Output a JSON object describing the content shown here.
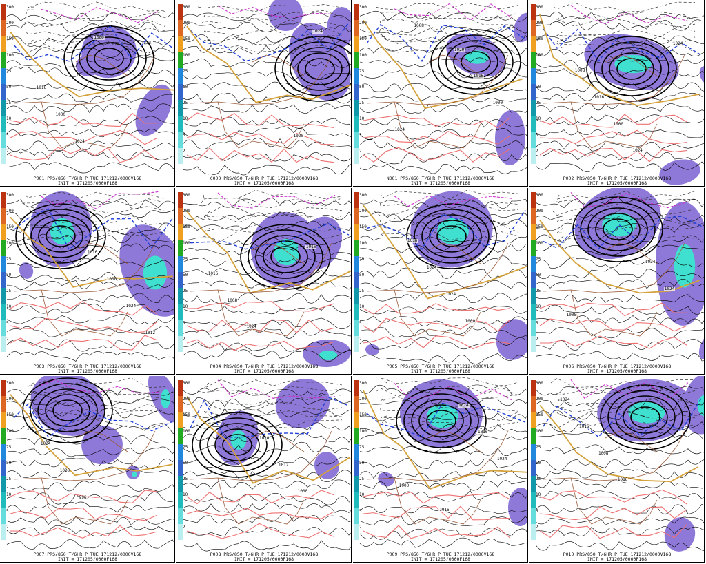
{
  "colors": {
    "precip_light": "#8e79d8",
    "precip_medium": "#a184e0",
    "precip_heavy": "#3fe0d0",
    "precip_core": "#22b6c0",
    "isobar": "#000000",
    "thickness": "#222222",
    "freezing_line": "#1f3fd6",
    "temp_line": "#d4a13a",
    "warm_line": "#ee7070",
    "cold_line": "#cc33cc",
    "coast": "#9a5a3a"
  },
  "colorbar": {
    "labels": [
      "300",
      "200",
      "150",
      "100",
      "75",
      "50",
      "25",
      "10",
      "5",
      "2"
    ],
    "segments": [
      "#bb3311",
      "#dd6622",
      "#f0a020",
      "#22aa22",
      "#2288dd",
      "#3366cc",
      "#1199aa",
      "#22bbbb",
      "#66dddd",
      "#bbeeee"
    ]
  },
  "panels": [
    {
      "id": "p001",
      "caption_line1": "P001 PRS/850 T/6HR P TUE 171212/0000V168",
      "caption_line2": "INIT = 171205/0000F168",
      "labels": [
        "1000",
        "1024",
        "1000",
        "1016"
      ]
    },
    {
      "id": "c000",
      "caption_line1": "C000 PRS/850 T/6HR P TUE 171212/0000V168",
      "caption_line2": "INIT = 171205/0000F168",
      "labels": [
        "1024",
        "1020"
      ]
    },
    {
      "id": "n001",
      "caption_line1": "N001 PRS/850 T/6HR P TUE 171212/0000V168",
      "caption_line2": "INIT = 171205/0000F168",
      "labels": [
        "1008",
        "1024",
        "1000",
        "1016",
        "1020"
      ]
    },
    {
      "id": "p002",
      "caption_line1": "P002 PRS/850 T/6HR P TUE 171212/0000V168",
      "caption_line2": "INIT = 171205/0000F168",
      "labels": [
        "1024",
        "1000",
        "1016",
        "1008",
        "1024"
      ]
    },
    {
      "id": "p003",
      "caption_line1": "P003 PRS/850 T/6HR P TUE 171212/0000V168",
      "caption_line2": "INIT = 171205/0000F168",
      "labels": [
        "1012",
        "1024",
        "1000",
        "1016"
      ]
    },
    {
      "id": "p004",
      "caption_line1": "P004 PRS/850 T/6HR P TUE 171212/0000V168",
      "caption_line2": "INIT = 171205/0000F168",
      "labels": [
        "1024",
        "1008",
        "1016",
        "1016"
      ]
    },
    {
      "id": "p005",
      "caption_line1": "P005 PRS/850 T/6HR P TUE 171212/0000V168",
      "caption_line2": "INIT = 171205/0000F168",
      "labels": [
        "1000",
        "1024",
        "1024",
        "1016"
      ]
    },
    {
      "id": "p006",
      "caption_line1": "P006 PRS/850 T/6HR P TUE 171212/0000V168",
      "caption_line2": "INIT = 171205/0000F168",
      "labels": [
        "1008",
        "1024",
        "1024"
      ]
    },
    {
      "id": "p007",
      "caption_line1": "P007 PRS/850 T/6HR P TUE 171212/0000V168",
      "caption_line2": "INIT = 171205/0000F168",
      "labels": [
        "996",
        "1020",
        "1024"
      ]
    },
    {
      "id": "p008",
      "caption_line1": "P008 PRS/850 T/6HR P TUE 171212/0000V168",
      "caption_line2": "INIT = 171205/0000F168",
      "labels": [
        "1000",
        "1012",
        "1020"
      ]
    },
    {
      "id": "p009",
      "caption_line1": "P009 PRS/850 T/6HR P TUE 171212/0000V168",
      "caption_line2": "INIT = 171205/0000F168",
      "labels": [
        "1000",
        "1024",
        "1016",
        "1024",
        "1016"
      ]
    },
    {
      "id": "p010",
      "caption_line1": "P010 PRS/850 T/6HR P TUE 171212/0000V168",
      "caption_line2": "INIT = 171205/0000F168",
      "labels": [
        "1016",
        "1008",
        "1016",
        "1024"
      ]
    }
  ]
}
